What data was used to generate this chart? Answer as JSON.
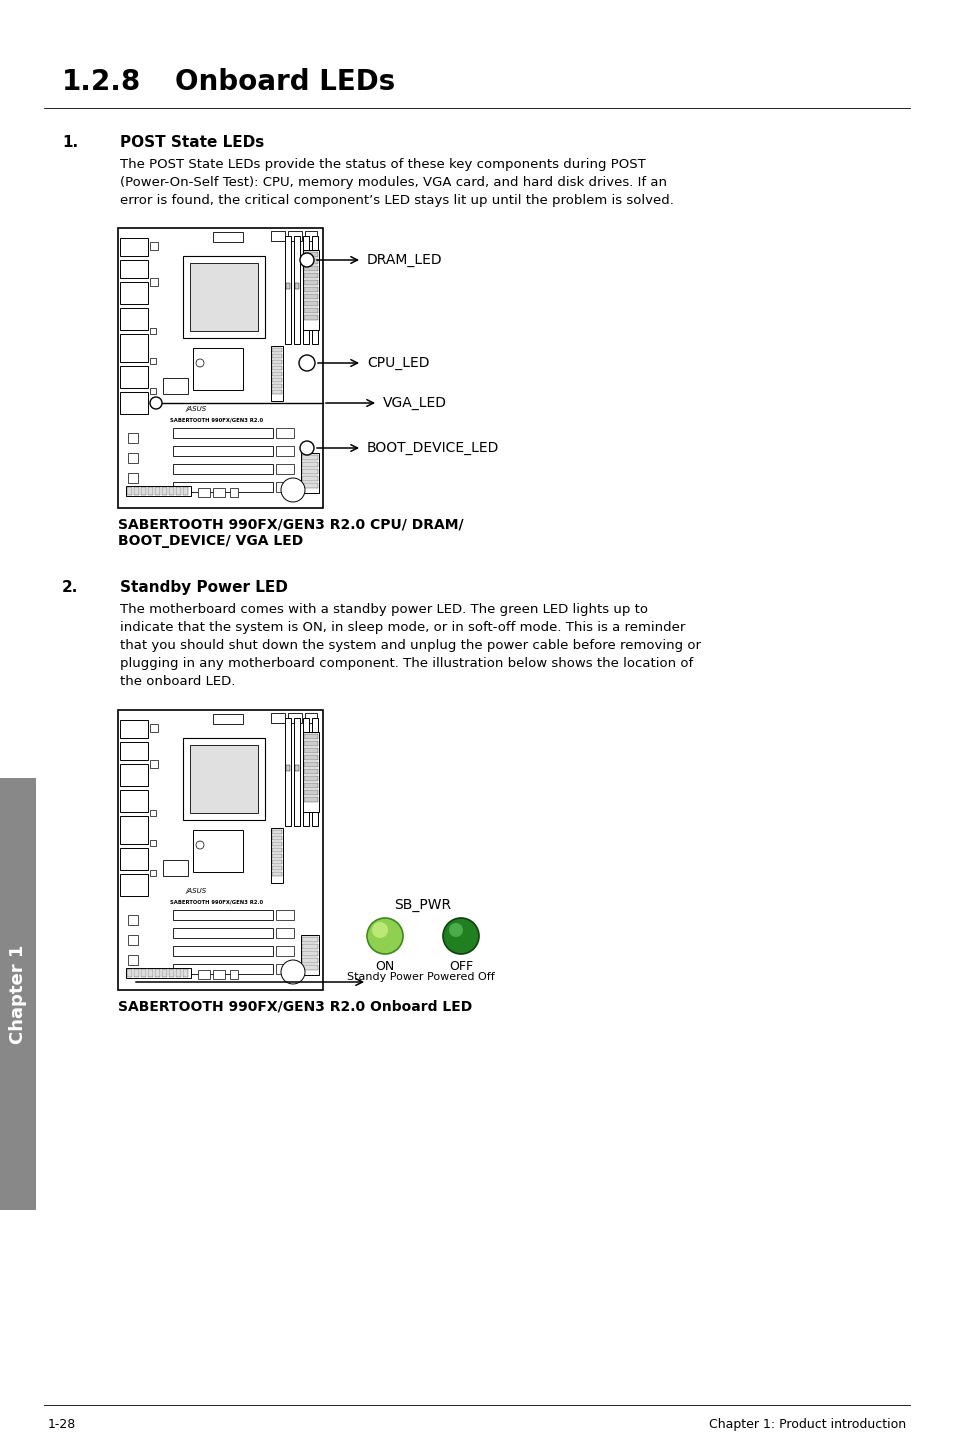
{
  "title_num": "1.2.8",
  "title_text": "Onboard LEDs",
  "section1_num": "1.",
  "section1_title": "POST State LEDs",
  "section1_body": [
    "The POST State LEDs provide the status of these key components during POST",
    "(Power-On-Self Test): CPU, memory modules, VGA card, and hard disk drives. If an",
    "error is found, the critical component’s LED stays lit up until the problem is solved."
  ],
  "diagram1_labels": [
    "DRAM_LED",
    "CPU_LED",
    "VGA_LED",
    "BOOT_DEVICE_LED"
  ],
  "diagram1_cap1": "SABERTOOTH 990FX/GEN3 R2.0 CPU/ DRAM/",
  "diagram1_cap2": "BOOT_DEVICE/ VGA LED",
  "section2_num": "2.",
  "section2_title": "Standby Power LED",
  "section2_body": [
    "The motherboard comes with a standby power LED. The green LED lights up to",
    "indicate that the system is ON, in sleep mode, or in soft-off mode. This is a reminder",
    "that you should shut down the system and unplug the power cable before removing or",
    "plugging in any motherboard component. The illustration below shows the location of",
    "the onboard LED."
  ],
  "sb_pwr": "SB_PWR",
  "on_label": "ON",
  "on_sub": "Standy Power",
  "off_label": "OFF",
  "off_sub": "Powered Off",
  "diagram2_cap": "SABERTOOTH 990FX/GEN3 R2.0 Onboard LED",
  "footer_left": "1-28",
  "footer_right": "Chapter 1: Product introduction",
  "sidebar_text": "Chapter 1",
  "page_bg": "#ffffff",
  "sidebar_bg": "#888888",
  "board_lw": 1.0,
  "led_on_color1": "#90d050",
  "led_on_color2": "#c8f080",
  "led_off_color1": "#208020",
  "led_off_color2": "#60c060"
}
